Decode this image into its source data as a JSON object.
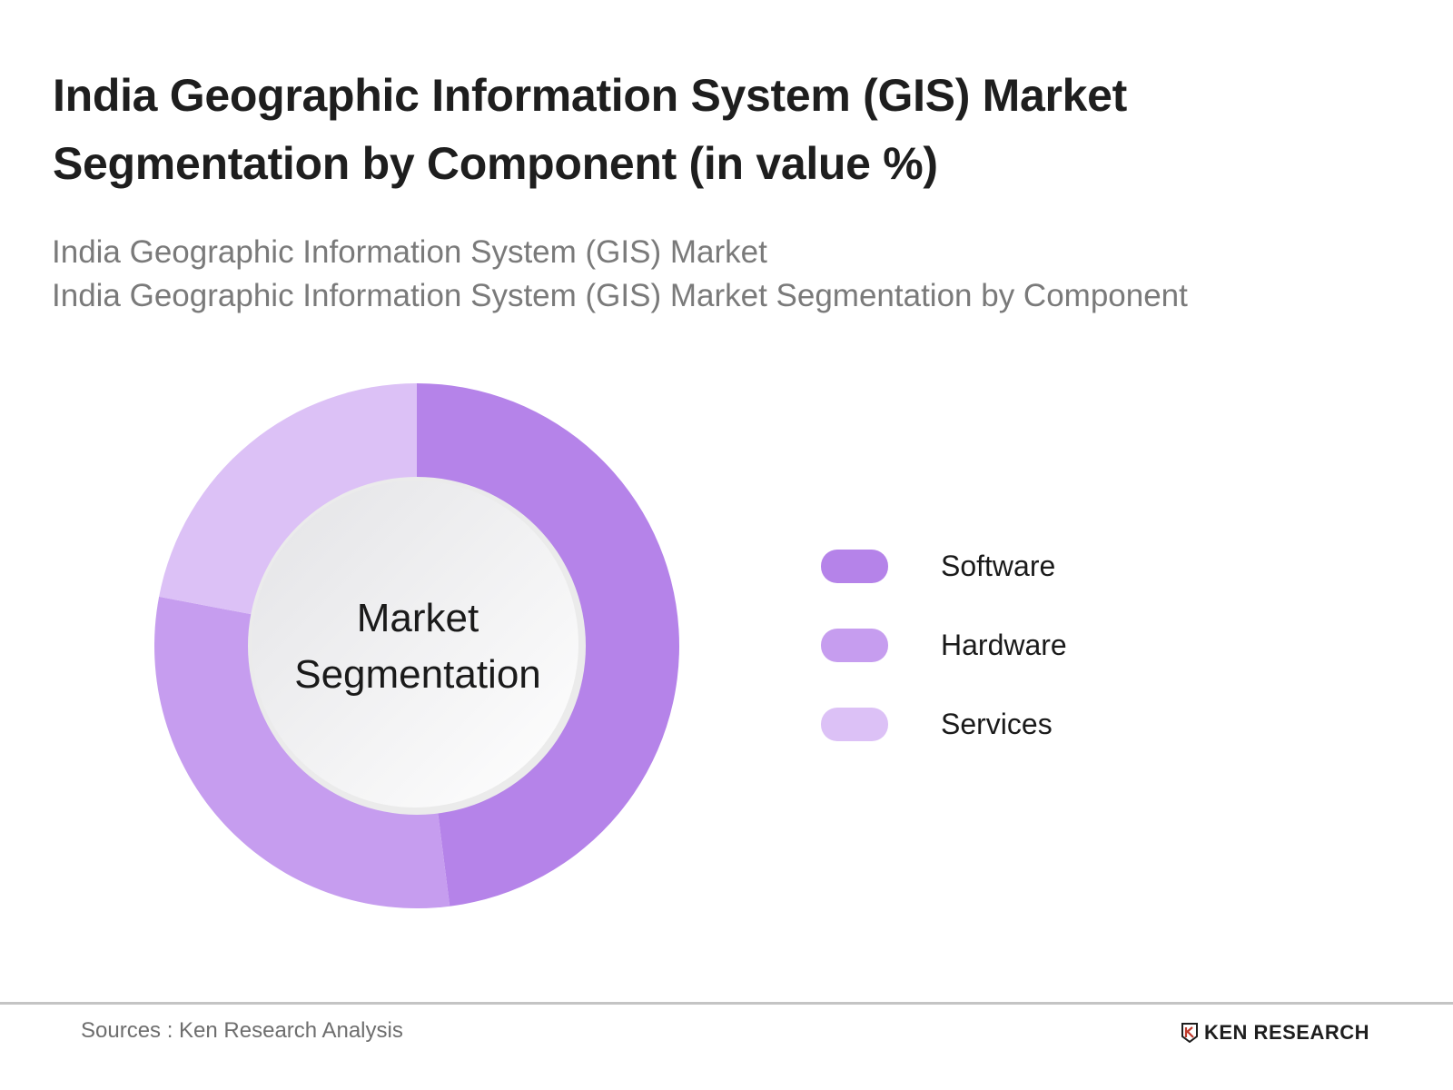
{
  "header": {
    "title": "India Geographic Information System (GIS) Market Segmentation by Component (in value %)",
    "subtitle_lines": [
      "India Geographic Information System (GIS) Market",
      "India Geographic Information System (GIS) Market Segmentation by Component"
    ]
  },
  "chart": {
    "center_label_line1": "Market",
    "center_label_line2": "Segmentation"
  },
  "legend": [
    {
      "label": "Software",
      "color": "#b583e9"
    },
    {
      "label": "Hardware",
      "color": "#c69def"
    },
    {
      "label": "Services",
      "color": "#dcc1f6"
    }
  ],
  "footer": {
    "source": "Sources : Ken Research Analysis",
    "logo_text": "KEN RESEARCH"
  },
  "chart_data": {
    "type": "pie",
    "subtype": "donut",
    "title": "India Geographic Information System (GIS) Market Segmentation by Component (in value %)",
    "subtitle": "India Geographic Information System (GIS) Market Segmentation by Component",
    "center_text": "Market Segmentation",
    "categories": [
      "Software",
      "Hardware",
      "Services"
    ],
    "values": [
      48,
      30,
      22
    ],
    "unit": "%",
    "colors": [
      "#b583e9",
      "#c69def",
      "#dcc1f6"
    ],
    "start_angle": "12 o'clock, clockwise",
    "legend_position": "right",
    "data_labels": false
  }
}
